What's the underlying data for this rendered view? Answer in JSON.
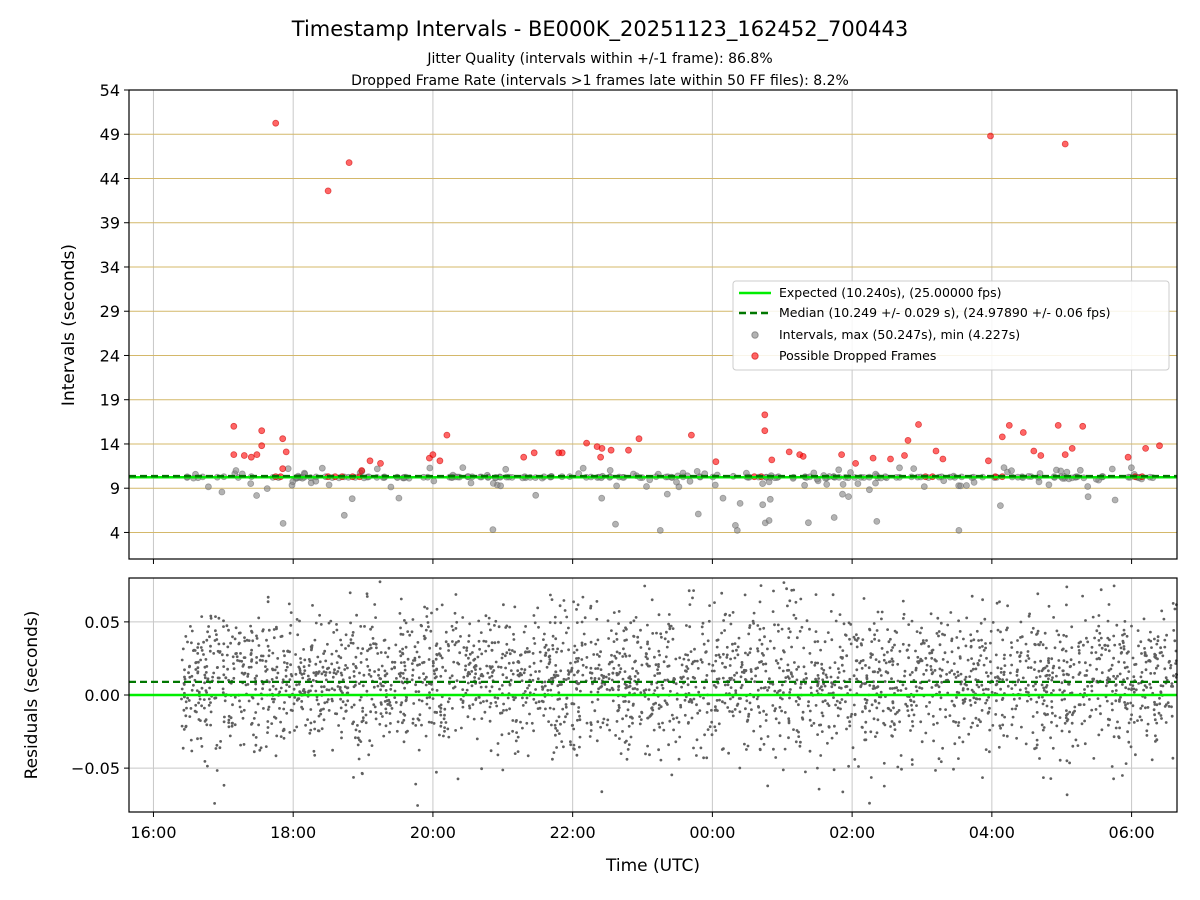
{
  "colors": {
    "expected": "#00ee00",
    "median": "#007700",
    "intervals": "#808080",
    "dropped": "#ff0000",
    "residual": "#606060",
    "hgrid_top": "#d4b86a",
    "grid": "#c8c8c8"
  },
  "chart_data": [
    {
      "type": "scatter",
      "title": "Timestamp Intervals - BE000K_20251123_162452_700443",
      "subtitle_lines": [
        "Jitter Quality (intervals within +/-1 frame): 86.8%",
        "Dropped Frame Rate (intervals >1 frames late within 50 FF files): 8.2%"
      ],
      "xlabel": "",
      "ylabel": "Intervals (seconds)",
      "x_unit": "hours since 16:00 UTC",
      "xlim": [
        -0.35,
        14.65
      ],
      "ylim": [
        1,
        54
      ],
      "yticks": [
        4,
        9,
        14,
        19,
        24,
        29,
        34,
        39,
        44,
        49,
        54
      ],
      "expected": 10.24,
      "median": 10.249,
      "legend": {
        "position": "center-right",
        "entries": [
          "Expected (10.240s), (25.00000 fps)",
          "Median (10.249 +/- 0.029 s), (24.97890 +/- 0.06 fps)",
          "Intervals, max (50.247s), min (4.227s)",
          "Possible Dropped Frames"
        ]
      },
      "dropped_frames": [
        [
          1.75,
          50.25
        ],
        [
          2.5,
          42.6
        ],
        [
          2.8,
          45.8
        ],
        [
          11.98,
          48.8
        ],
        [
          13.05,
          47.9
        ],
        [
          1.15,
          16.0
        ],
        [
          1.15,
          12.8
        ],
        [
          1.3,
          12.7
        ],
        [
          1.4,
          12.5
        ],
        [
          1.48,
          12.8
        ],
        [
          1.55,
          15.5
        ],
        [
          1.55,
          13.8
        ],
        [
          1.75,
          10.3
        ],
        [
          1.82,
          10.3
        ],
        [
          1.85,
          11.2
        ],
        [
          1.85,
          14.6
        ],
        [
          1.9,
          13.1
        ],
        [
          2.5,
          10.3
        ],
        [
          2.6,
          10.3
        ],
        [
          2.7,
          10.3
        ],
        [
          2.85,
          10.3
        ],
        [
          2.95,
          10.3
        ],
        [
          2.98,
          11.0
        ],
        [
          3.1,
          12.1
        ],
        [
          3.25,
          11.8
        ],
        [
          3.95,
          12.4
        ],
        [
          4.0,
          12.8
        ],
        [
          4.1,
          12.1
        ],
        [
          4.2,
          15.0
        ],
        [
          5.3,
          12.5
        ],
        [
          5.45,
          13.0
        ],
        [
          5.8,
          13.0
        ],
        [
          5.85,
          13.0
        ],
        [
          6.2,
          14.1
        ],
        [
          6.35,
          13.7
        ],
        [
          6.4,
          12.5
        ],
        [
          6.42,
          13.5
        ],
        [
          6.55,
          13.3
        ],
        [
          6.8,
          13.3
        ],
        [
          6.95,
          14.6
        ],
        [
          7.7,
          15.0
        ],
        [
          8.05,
          12.0
        ],
        [
          8.6,
          10.3
        ],
        [
          8.7,
          10.3
        ],
        [
          8.75,
          17.3
        ],
        [
          8.75,
          15.5
        ],
        [
          8.85,
          12.2
        ],
        [
          9.1,
          13.1
        ],
        [
          9.25,
          12.8
        ],
        [
          9.3,
          12.6
        ],
        [
          9.85,
          12.8
        ],
        [
          10.05,
          11.8
        ],
        [
          10.3,
          12.4
        ],
        [
          10.55,
          12.3
        ],
        [
          10.75,
          12.7
        ],
        [
          10.8,
          14.4
        ],
        [
          10.95,
          16.2
        ],
        [
          11.05,
          10.3
        ],
        [
          11.15,
          10.3
        ],
        [
          11.2,
          13.2
        ],
        [
          11.3,
          12.3
        ],
        [
          11.95,
          12.1
        ],
        [
          12.05,
          10.3
        ],
        [
          12.15,
          10.3
        ],
        [
          12.15,
          14.8
        ],
        [
          12.25,
          16.1
        ],
        [
          12.45,
          15.3
        ],
        [
          12.6,
          13.2
        ],
        [
          12.7,
          12.7
        ],
        [
          12.95,
          16.1
        ],
        [
          13.05,
          12.8
        ],
        [
          13.15,
          13.5
        ],
        [
          13.3,
          16.0
        ],
        [
          13.95,
          12.5
        ],
        [
          14.05,
          10.3
        ],
        [
          14.15,
          10.3
        ],
        [
          14.2,
          13.5
        ],
        [
          14.4,
          13.8
        ]
      ]
    },
    {
      "type": "scatter",
      "xlabel": "Time (UTC)",
      "ylabel": "Residuals (seconds)",
      "xlim": [
        -0.35,
        14.65
      ],
      "ylim": [
        -0.08,
        0.08
      ],
      "yticks": [
        -0.05,
        0.0,
        0.05
      ],
      "ytick_labels": [
        "−0.05",
        "0.00",
        "0.05"
      ],
      "xticks": [
        0,
        2,
        4,
        6,
        8,
        10,
        12,
        14
      ],
      "xtick_labels": [
        "16:00",
        "18:00",
        "20:00",
        "22:00",
        "00:00",
        "02:00",
        "04:00",
        "06:00"
      ],
      "expected_residual": 0.0,
      "median_residual": 0.009,
      "data_range_hours": [
        0.4,
        14.65
      ],
      "residual_std": 0.025
    }
  ]
}
